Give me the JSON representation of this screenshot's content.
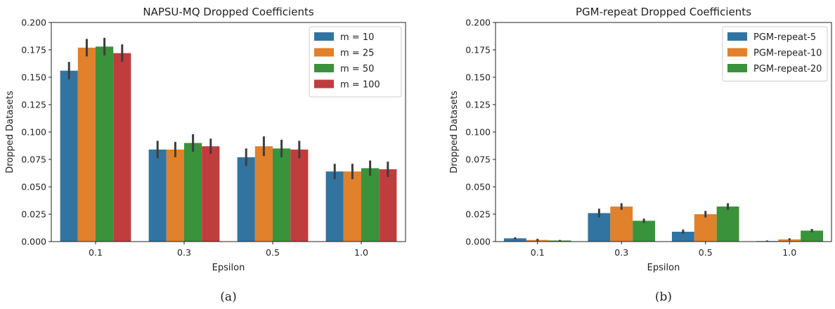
{
  "chart_data": [
    {
      "type": "bar",
      "title": "NAPSU-MQ Dropped Coefficients",
      "xlabel": "Epsilon",
      "ylabel": "Dropped Datasets",
      "ylim": [
        0,
        0.2
      ],
      "yticks": [
        "0.000",
        "0.025",
        "0.050",
        "0.075",
        "0.100",
        "0.125",
        "0.150",
        "0.175",
        "0.200"
      ],
      "categories": [
        "0.1",
        "0.3",
        "0.5",
        "1.0"
      ],
      "legend": "top-right",
      "grid": false,
      "caption": "(a)",
      "series": [
        {
          "name": "m = 10",
          "color": "#3274a1",
          "values": [
            0.156,
            0.084,
            0.077,
            0.064
          ],
          "err": [
            0.008,
            0.008,
            0.008,
            0.007
          ]
        },
        {
          "name": "m = 25",
          "color": "#e1812c",
          "values": [
            0.177,
            0.084,
            0.087,
            0.064
          ],
          "err": [
            0.008,
            0.007,
            0.009,
            0.007
          ]
        },
        {
          "name": "m = 50",
          "color": "#3a923a",
          "values": [
            0.178,
            0.09,
            0.085,
            0.067
          ],
          "err": [
            0.008,
            0.008,
            0.008,
            0.007
          ]
        },
        {
          "name": "m = 100",
          "color": "#c03d3e",
          "values": [
            0.172,
            0.087,
            0.084,
            0.066
          ],
          "err": [
            0.008,
            0.007,
            0.008,
            0.007
          ]
        }
      ]
    },
    {
      "type": "bar",
      "title": "PGM-repeat Dropped Coefficients",
      "xlabel": "Epsilon",
      "ylabel": "Dropped Datasets",
      "ylim": [
        0,
        0.2
      ],
      "yticks": [
        "0.000",
        "0.025",
        "0.050",
        "0.075",
        "0.100",
        "0.125",
        "0.150",
        "0.175",
        "0.200"
      ],
      "categories": [
        "0.1",
        "0.3",
        "0.5",
        "1.0"
      ],
      "legend": "top-right",
      "grid": false,
      "caption": "(b)",
      "series": [
        {
          "name": "PGM-repeat-5",
          "color": "#3274a1",
          "values": [
            0.003,
            0.026,
            0.009,
            0.0005
          ],
          "err": [
            0.001,
            0.004,
            0.002,
            0.0005
          ]
        },
        {
          "name": "PGM-repeat-10",
          "color": "#e1812c",
          "values": [
            0.0015,
            0.032,
            0.025,
            0.002
          ],
          "err": [
            0.001,
            0.003,
            0.003,
            0.001
          ]
        },
        {
          "name": "PGM-repeat-20",
          "color": "#3a923a",
          "values": [
            0.001,
            0.019,
            0.032,
            0.01
          ],
          "err": [
            0.0005,
            0.002,
            0.003,
            0.0015
          ]
        }
      ]
    }
  ]
}
